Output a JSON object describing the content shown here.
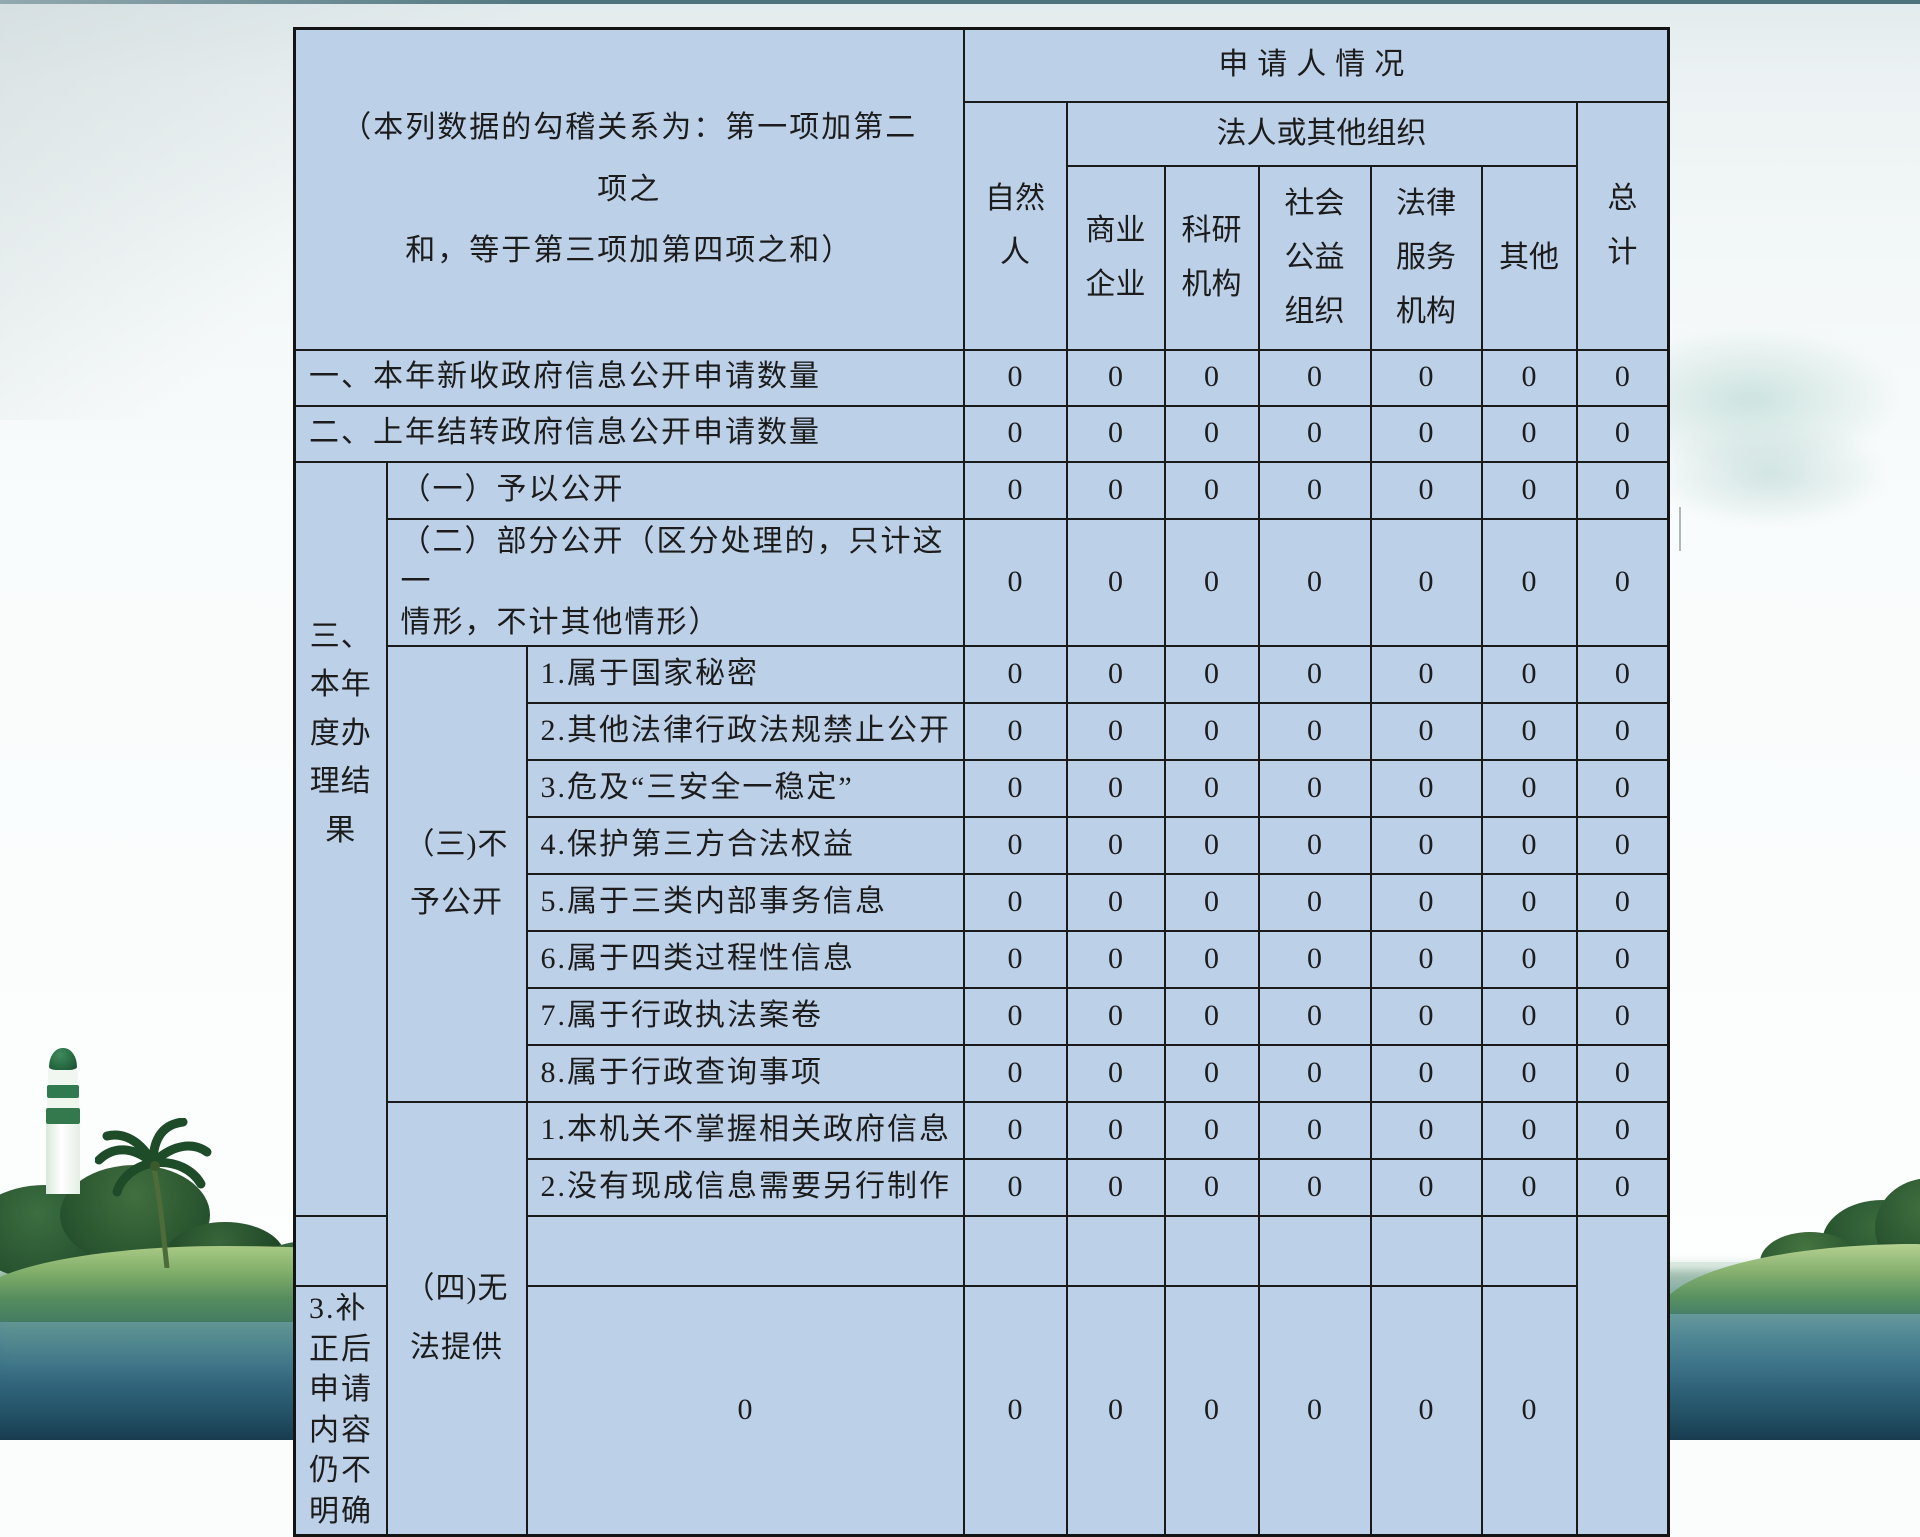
{
  "table": {
    "corner_note": "（本列数据的勾稽关系为：第一项加第二项之\n和，等于第三项加第四项之和）",
    "header": {
      "applicant_title": "申请人情况",
      "natural_person": "自然\n人",
      "legal_org_title": "法人或其他组织",
      "sub_columns": [
        "商业\n企业",
        "科研\n机构",
        "社会\n公益\n组织",
        "法律\n服务\n机构",
        "其他"
      ],
      "total": "总\n计"
    },
    "section3_label": "三、\n本年\n度办\n理结\n果",
    "group3_label": "（三)不\n予公开",
    "group4_label": "（四)无\n法提供",
    "rows": [
      {
        "label": "一、本年新收政府信息公开申请数量",
        "values": [
          "0",
          "0",
          "0",
          "0",
          "0",
          "0",
          "0"
        ]
      },
      {
        "label": "二、上年结转政府信息公开申请数量",
        "values": [
          "0",
          "0",
          "0",
          "0",
          "0",
          "0",
          "0"
        ]
      },
      {
        "label": "（一）予以公开",
        "values": [
          "0",
          "0",
          "0",
          "0",
          "0",
          "0",
          "0"
        ]
      },
      {
        "label": "（二）部分公开（区分处理的，只计这一\n情形，不计其他情形）",
        "values": [
          "0",
          "0",
          "0",
          "0",
          "0",
          "0",
          "0"
        ]
      },
      {
        "label": "1.属于国家秘密",
        "values": [
          "0",
          "0",
          "0",
          "0",
          "0",
          "0",
          "0"
        ]
      },
      {
        "label": "2.其他法律行政法规禁止公开",
        "values": [
          "0",
          "0",
          "0",
          "0",
          "0",
          "0",
          "0"
        ]
      },
      {
        "label": "3.危及“三安全一稳定”",
        "values": [
          "0",
          "0",
          "0",
          "0",
          "0",
          "0",
          "0"
        ]
      },
      {
        "label": "4.保护第三方合法权益",
        "values": [
          "0",
          "0",
          "0",
          "0",
          "0",
          "0",
          "0"
        ]
      },
      {
        "label": "5.属于三类内部事务信息",
        "values": [
          "0",
          "0",
          "0",
          "0",
          "0",
          "0",
          "0"
        ]
      },
      {
        "label": "6.属于四类过程性信息",
        "values": [
          "0",
          "0",
          "0",
          "0",
          "0",
          "0",
          "0"
        ]
      },
      {
        "label": "7.属于行政执法案卷",
        "values": [
          "0",
          "0",
          "0",
          "0",
          "0",
          "0",
          "0"
        ]
      },
      {
        "label": "8.属于行政查询事项",
        "values": [
          "0",
          "0",
          "0",
          "0",
          "0",
          "0",
          "0"
        ]
      },
      {
        "label": "1.本机关不掌握相关政府信息",
        "values": [
          "0",
          "0",
          "0",
          "0",
          "0",
          "0",
          "0"
        ]
      },
      {
        "label": "2.没有现成信息需要另行制作",
        "values": [
          "0",
          "0",
          "0",
          "0",
          "0",
          "0",
          "0"
        ]
      },
      {
        "label": "",
        "values": [
          "",
          "",
          "",
          "",
          "",
          "",
          ""
        ]
      },
      {
        "label": "3.补正后申请内容仍不明确",
        "values": [
          "0",
          "0",
          "0",
          "0",
          "0",
          "0",
          "0"
        ]
      }
    ]
  },
  "colors": {
    "cell_bg": "#bcd0e8",
    "border": "#1a1a1a",
    "text": "#1c1c1c",
    "sea_deep": "#173c4f",
    "sea_mid": "#3d7389",
    "island_tree": "#234d2b",
    "island_grass": "#7cab68"
  }
}
